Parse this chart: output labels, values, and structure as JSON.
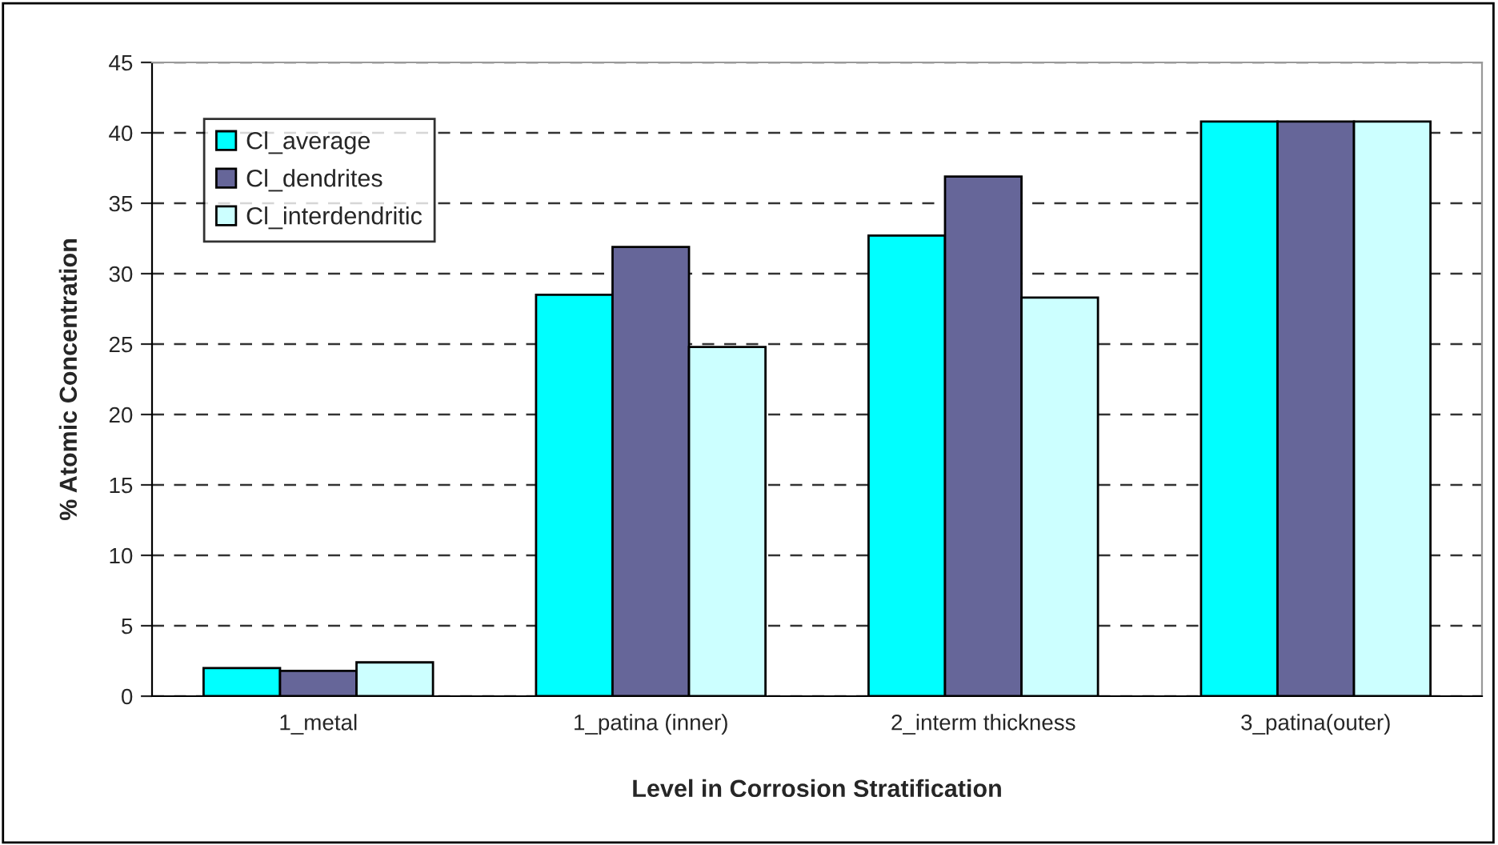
{
  "chart_data": {
    "type": "bar",
    "xlabel": "Level in Corrosion Stratification",
    "ylabel": "% Atomic Concentration",
    "categories": [
      "1_metal",
      "1_patina (inner)",
      "2_interm thickness",
      "3_patina(outer)"
    ],
    "series": [
      {
        "name": "Cl_average",
        "color": "#00ffff",
        "values": [
          2.0,
          28.5,
          32.7,
          40.8
        ]
      },
      {
        "name": "Cl_dendrites",
        "color": "#666699",
        "values": [
          1.8,
          31.9,
          36.9,
          40.8
        ]
      },
      {
        "name": "Cl_interdendritic",
        "color": "#ccffff",
        "values": [
          2.4,
          24.8,
          28.3,
          40.8
        ]
      }
    ],
    "ylim": [
      0,
      45
    ],
    "yticks": [
      0,
      5,
      10,
      15,
      20,
      25,
      30,
      35,
      40,
      45
    ],
    "grid": "y",
    "legend": "top left"
  }
}
